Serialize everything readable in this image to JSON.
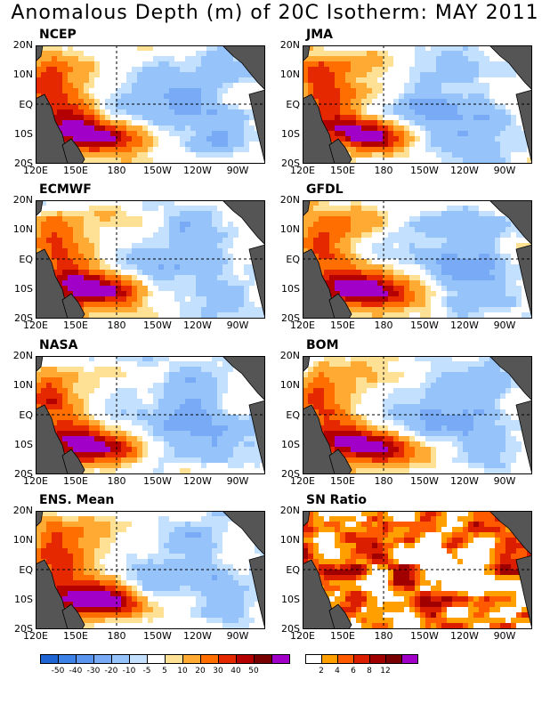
{
  "title": "Anomalous Depth (m) of 20C Isotherm: MAY 2011",
  "panels": [
    {
      "name": "NCEP",
      "scale": "anomaly",
      "pattern": "A"
    },
    {
      "name": "JMA",
      "scale": "anomaly",
      "pattern": "B"
    },
    {
      "name": "ECMWF",
      "scale": "anomaly",
      "pattern": "C"
    },
    {
      "name": "GFDL",
      "scale": "anomaly",
      "pattern": "D"
    },
    {
      "name": "NASA",
      "scale": "anomaly",
      "pattern": "E"
    },
    {
      "name": "BOM",
      "scale": "anomaly",
      "pattern": "F"
    },
    {
      "name": "ENS. Mean",
      "scale": "anomaly",
      "pattern": "G"
    },
    {
      "name": "SN Ratio",
      "scale": "snratio",
      "pattern": "H"
    }
  ],
  "x_ticks": [
    "120E",
    "150E",
    "180",
    "150W",
    "120W",
    "90W"
  ],
  "y_ticks": [
    "20N",
    "10N",
    "EQ",
    "10S",
    "20S"
  ],
  "chart_data": {
    "type": "heatmap",
    "title": "Anomalous Depth (m) of 20C Isotherm: MAY 2011",
    "x_range": [
      "120E",
      "70W"
    ],
    "y_range": [
      "20S",
      "20N"
    ],
    "reference_lines": [
      "180",
      "EQ"
    ],
    "anomaly_scale": {
      "tick_labels": [
        "-50",
        "-40",
        "-30",
        "-20",
        "-10",
        "-5",
        "5",
        "10",
        "20",
        "30",
        "40",
        "50"
      ],
      "thresholds": [
        -50,
        -40,
        -30,
        -20,
        -10,
        -5,
        5,
        10,
        20,
        30,
        40,
        50
      ],
      "colors": [
        "#1e64d2",
        "#3c82e6",
        "#5a96f0",
        "#78aaf5",
        "#96c3fa",
        "#c3e1ff",
        "#ffffff",
        "#ffe196",
        "#ffaa32",
        "#ff6e00",
        "#e62800",
        "#b40000",
        "#780000",
        "#a000c8"
      ]
    },
    "sn_scale": {
      "tick_labels": [
        "2",
        "4",
        "6",
        "8",
        "12"
      ],
      "thresholds": [
        2,
        4,
        6,
        8,
        12
      ],
      "colors": [
        "#ffffff",
        "#ffa000",
        "#ff5a00",
        "#dc1e00",
        "#a00000",
        "#780000",
        "#a000c8"
      ]
    }
  }
}
